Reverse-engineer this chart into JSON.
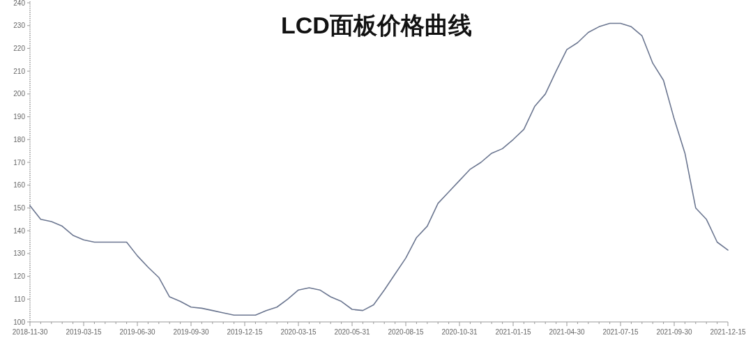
{
  "chart_data": {
    "type": "line",
    "title": "LCD面板价格曲线",
    "categories": [
      "2018-11-30",
      null,
      null,
      null,
      null,
      "2019-03-15",
      null,
      null,
      null,
      null,
      "2019-06-30",
      null,
      null,
      null,
      null,
      "2019-09-30",
      null,
      null,
      null,
      null,
      "2019-12-15",
      null,
      null,
      null,
      null,
      "2020-03-15",
      null,
      null,
      null,
      null,
      "2020-05-31",
      null,
      null,
      null,
      null,
      "2020-08-15",
      null,
      null,
      null,
      null,
      "2020-10-31",
      null,
      null,
      null,
      null,
      "2021-01-15",
      null,
      null,
      null,
      null,
      "2021-04-30",
      null,
      null,
      null,
      null,
      "2021-07-15",
      null,
      null,
      null,
      null,
      "2021-09-30",
      null,
      null,
      null,
      null,
      "2021-12-15"
    ],
    "values": [
      151,
      145,
      144,
      142,
      138,
      136,
      135,
      135,
      135,
      135,
      129,
      124,
      119.5,
      111,
      109,
      106.5,
      106,
      105,
      104,
      103,
      103,
      103,
      105,
      106.5,
      110,
      114,
      115,
      114,
      111,
      109,
      105.5,
      105,
      107.5,
      114,
      121,
      128,
      137,
      142,
      152,
      157,
      162,
      167,
      170,
      174,
      176,
      180,
      184.5,
      194.5,
      200,
      210,
      219.5,
      222.5,
      227,
      229.5,
      231,
      231,
      229.5,
      225.5,
      213.5,
      206,
      189,
      174,
      150,
      145,
      135,
      131.5
    ],
    "color": "#6b7690",
    "ylim": [
      100,
      240
    ],
    "yticks": [
      100,
      110,
      120,
      130,
      140,
      150,
      160,
      170,
      180,
      190,
      200,
      210,
      220,
      230,
      240
    ]
  }
}
